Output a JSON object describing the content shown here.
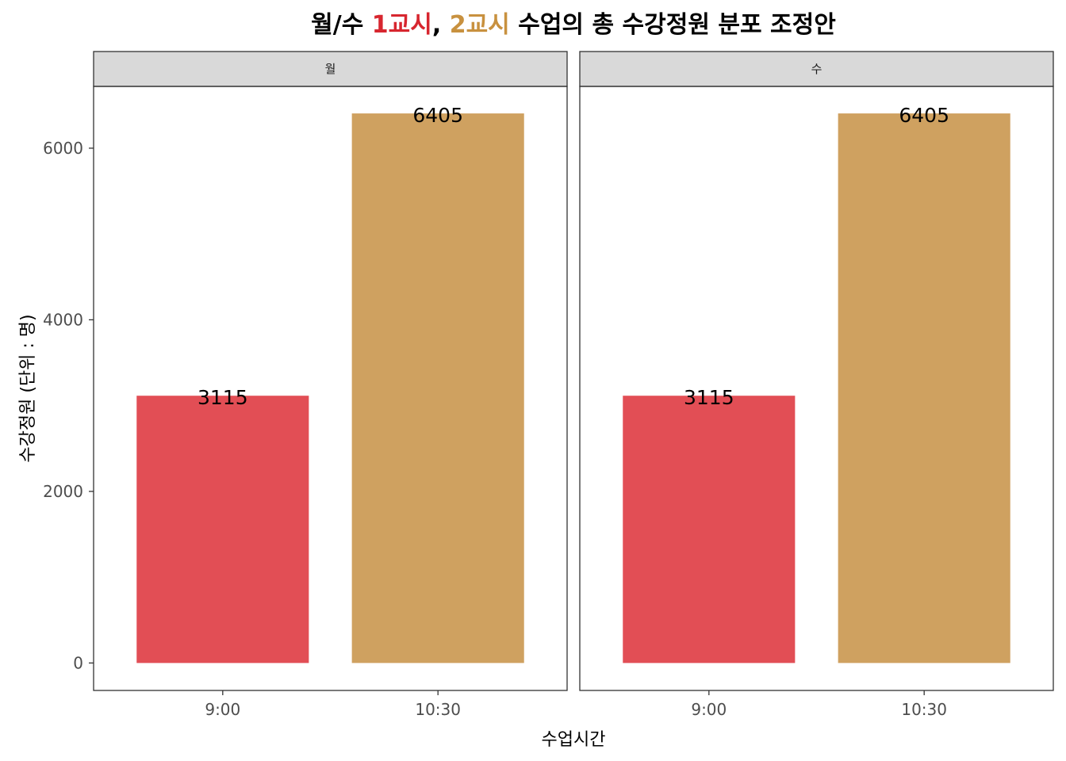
{
  "chart_data": {
    "type": "bar",
    "title_parts": [
      {
        "text": "월/수 ",
        "color": "#000000"
      },
      {
        "text": "1교시",
        "color": "#D7262F"
      },
      {
        "text": ", ",
        "color": "#000000"
      },
      {
        "text": "2교시",
        "color": "#C8913F"
      },
      {
        "text": " 수업의 총 수강정원 분포 조정안",
        "color": "#000000"
      }
    ],
    "xlabel": "수업시간",
    "ylabel": "수강정원 (단위 : 명)",
    "categories": [
      "9:00",
      "10:30"
    ],
    "bar_colors": [
      "#E24E55",
      "#CFA160"
    ],
    "ylim": [
      -320,
      6720
    ],
    "yticks": [
      0,
      2000,
      4000,
      6000
    ],
    "facets": [
      {
        "name": "월",
        "values": [
          3115,
          6405
        ]
      },
      {
        "name": "수",
        "values": [
          3115,
          6405
        ]
      }
    ]
  }
}
